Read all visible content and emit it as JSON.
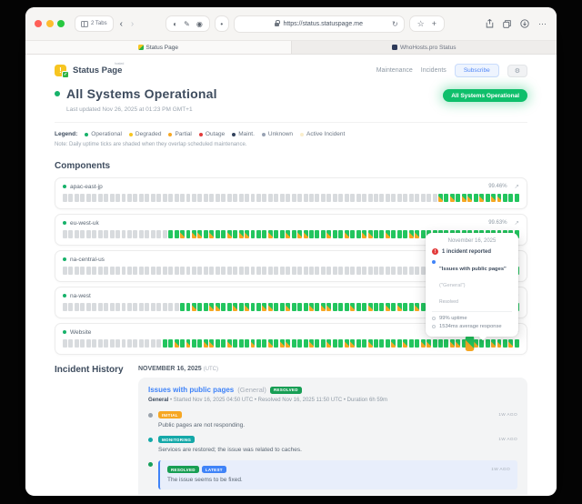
{
  "browser": {
    "tabs_pill": "2 Tabs",
    "url": "https://status.statuspage.me",
    "icons": {
      "back": "‹",
      "forward": "›",
      "reader": "◐",
      "compose": "✎",
      "extensions": "◉",
      "dot": "•",
      "refresh": "↻",
      "star": "☆",
      "new_tab": "+",
      "more": "⋯"
    },
    "tabs": [
      {
        "title": "Status Page"
      },
      {
        "title": "WhoHosts.pro Status"
      }
    ]
  },
  "header": {
    "logo_text": "Status Page",
    "logo_sup": "hosted",
    "nav": [
      "Maintenance",
      "Incidents"
    ],
    "subscribe": "Subscribe",
    "gear": "⚙"
  },
  "hero": {
    "title": "All Systems Operational",
    "updated": "Last updated Nov 26, 2025 at 01:23 PM GMT+1",
    "badge": "All Systems Operational"
  },
  "legend": {
    "label": "Legend:",
    "note": "Note: Daily uptime ticks are shaded when they overlap scheduled maintenance.",
    "items": [
      {
        "label": "Operational",
        "color": "#17b26a"
      },
      {
        "label": "Degraded",
        "color": "#f7c521"
      },
      {
        "label": "Partial",
        "color": "#f6a723"
      },
      {
        "label": "Outage",
        "color": "#e23b3b"
      },
      {
        "label": "Maint.",
        "color": "#33435c"
      },
      {
        "label": "Unknown",
        "color": "#98a2b3"
      },
      {
        "label": "Active Incident",
        "color": "#faeecb"
      }
    ]
  },
  "components": {
    "heading": "Components",
    "expand_icon": "↗",
    "rows": [
      {
        "name": "apac-east-jp",
        "uptime": "99.46%",
        "lead_gray": 64,
        "pattern": "OGOGOOGOGOOGGG"
      },
      {
        "name": "eu-west-uk",
        "uptime": "99.63%",
        "lead_gray": 18,
        "pattern": "GGOGOOGOGGOGOOGGGOGGOGOOGGGOGGOGGOOGGOGGGOOGGOGGGOGGOGGOGOGG"
      },
      {
        "name": "na-central-us",
        "uptime": "99.71%",
        "lead_gray": 74,
        "pattern": "GGGG"
      },
      {
        "name": "na-west",
        "uptime": "",
        "lead_gray": 20,
        "pattern": "GGOGGOOGGOGOGGOOGGOGGGOGOOGGGOGGOGGOGOGGOGGOOGGOGGGOGGOGGG"
      },
      {
        "name": "Website",
        "uptime": "",
        "lead_gray": 17,
        "pattern": "GGOGOGGOOGGOGGGOGGOGOOGGGOGGOGGOOGGOGGGOGOGGOOGGGOOGHOGGOOGOG"
      }
    ]
  },
  "tooltip": {
    "date": "November 16, 2025",
    "incidents_line": "1 incident reported",
    "alert_glyph": "!",
    "incident_title": "\"Issues with public pages\"",
    "incident_scope": "(\"General\")",
    "incident_status": "Resolved",
    "uptime_line": "99% uptime",
    "response_line": "1534ms average response"
  },
  "incident_history": {
    "heading": "Incident History",
    "date": "NOVEMBER 16, 2025",
    "date_tz": "(UTC)",
    "incident": {
      "title": "Issues with public pages",
      "scope": "(General)",
      "status": "RESOLVED",
      "meta_component": "General",
      "meta_rest": " • Started Nov 16, 2025 04:50 UTC • Resolved Nov 16, 2025 11:50 UTC • Duration 6h 59m",
      "badge_colors": {
        "INITIAL": "#f6a723",
        "MONITORING": "#14a8a8",
        "RESOLVED": "#179e54",
        "LATEST": "#3f83f8"
      },
      "updates": [
        {
          "badges": [
            "INITIAL"
          ],
          "dot": "#9aa3ad",
          "time": "1W AGO",
          "text": "Public pages are not responding.",
          "highlight": false
        },
        {
          "badges": [
            "MONITORING"
          ],
          "dot": "#14a8a8",
          "time": "1W AGO",
          "text": "Services are restored; the issue was related to caches.",
          "highlight": false
        },
        {
          "badges": [
            "RESOLVED",
            "LATEST"
          ],
          "dot": "#17a05c",
          "time": "1W AGO",
          "text": "The issue seems to be fixed.",
          "highlight": true
        }
      ]
    }
  }
}
